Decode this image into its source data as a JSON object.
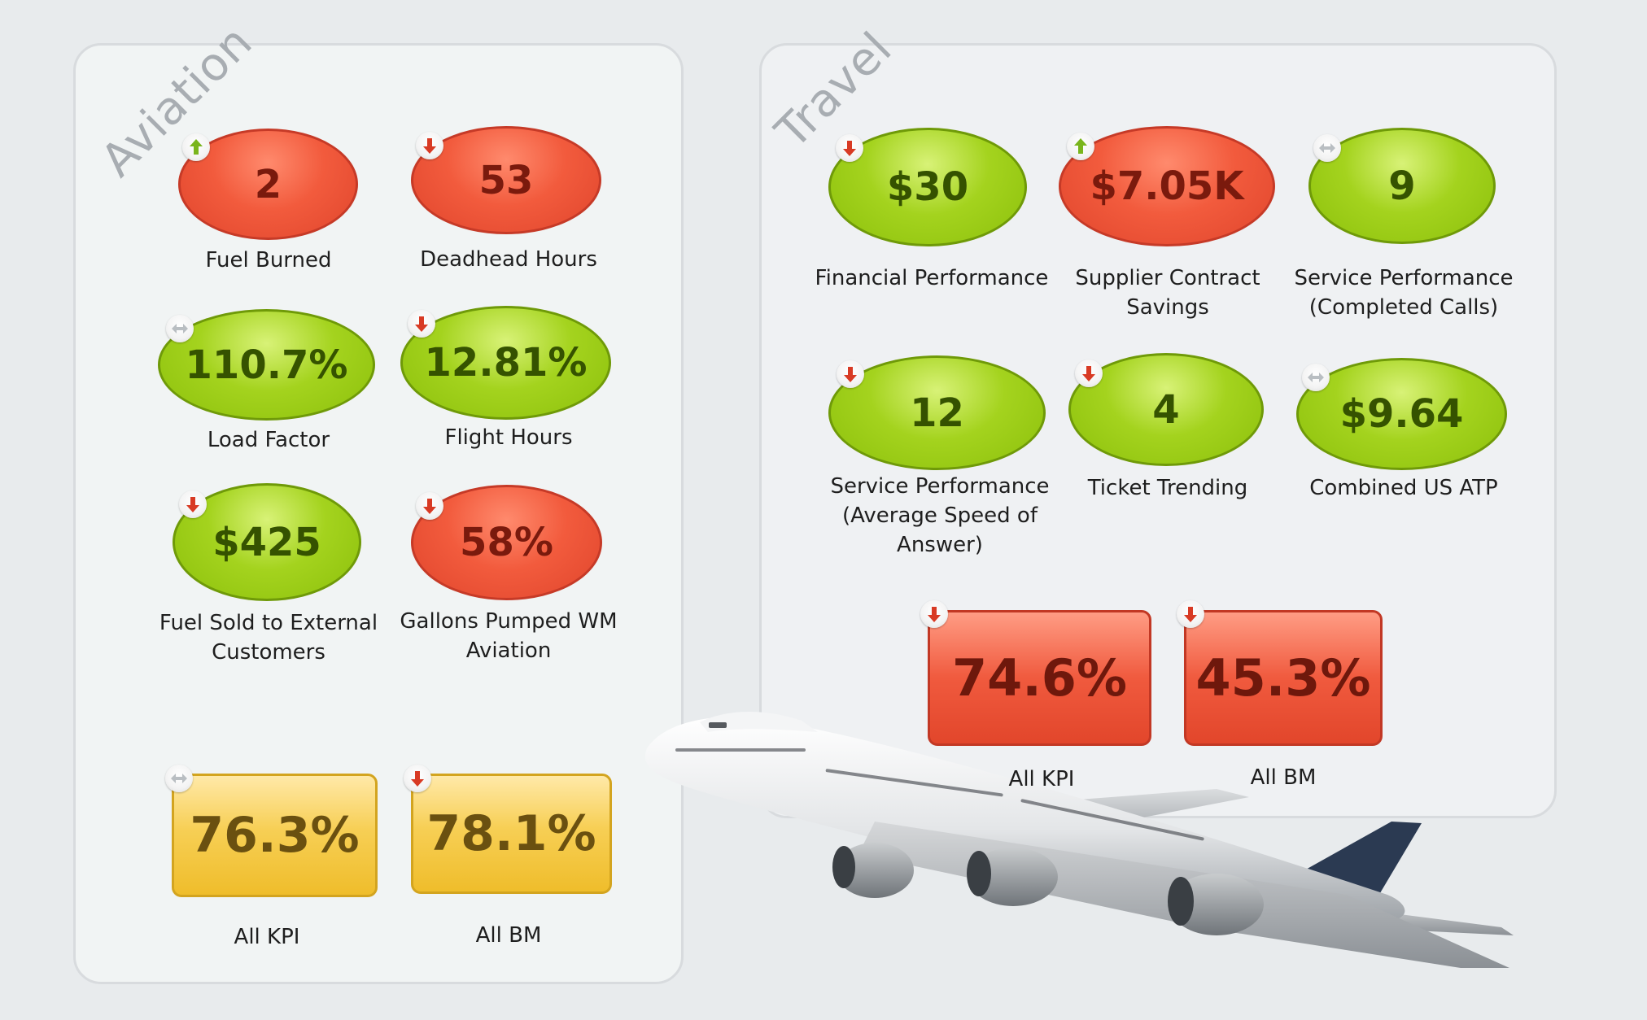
{
  "colors": {
    "red": "#f05a3e",
    "green": "#a4d31e",
    "yellow": "#f7cf55",
    "trend_up": "#79b51c",
    "trend_down": "#d83a24",
    "trend_flat": "#b9bec2"
  },
  "aviation": {
    "title": "Aviation",
    "kpis": [
      {
        "value": "2",
        "label": "Fuel Burned",
        "status": "red",
        "trend": "up"
      },
      {
        "value": "53",
        "label": "Deadhead Hours",
        "status": "red",
        "trend": "down"
      },
      {
        "value": "110.7%",
        "label": "Load Factor",
        "status": "green",
        "trend": "flat"
      },
      {
        "value": "12.81%",
        "label": "Flight Hours",
        "status": "green",
        "trend": "down"
      },
      {
        "value": "$425",
        "label": "Fuel Sold to External Customers",
        "status": "green",
        "trend": "down"
      },
      {
        "value": "58%",
        "label": "Gallons Pumped WM Aviation",
        "status": "red",
        "trend": "down"
      }
    ],
    "summary": [
      {
        "value": "76.3%",
        "label": "All KPI",
        "status": "yellow",
        "trend": "flat"
      },
      {
        "value": "78.1%",
        "label": "All BM",
        "status": "yellow",
        "trend": "down"
      }
    ]
  },
  "travel": {
    "title": "Travel",
    "kpis": [
      {
        "value": "$30",
        "label": "Financial Performance",
        "status": "green",
        "trend": "down"
      },
      {
        "value": "$7.05K",
        "label": "Supplier Contract Savings",
        "status": "red",
        "trend": "up"
      },
      {
        "value": "9",
        "label": "Service Performance (Completed Calls)",
        "status": "green",
        "trend": "flat"
      },
      {
        "value": "12",
        "label": "Service Performance (Average Speed of Answer)",
        "status": "green",
        "trend": "down"
      },
      {
        "value": "4",
        "label": "Ticket Trending",
        "status": "green",
        "trend": "down"
      },
      {
        "value": "$9.64",
        "label": "Combined US ATP",
        "status": "green",
        "trend": "flat"
      }
    ],
    "summary": [
      {
        "value": "74.6%",
        "label": "All KPI",
        "status": "red",
        "trend": "down"
      },
      {
        "value": "45.3%",
        "label": "All BM",
        "status": "red",
        "trend": "down"
      }
    ]
  },
  "decoration": {
    "image": "airplane-image"
  }
}
